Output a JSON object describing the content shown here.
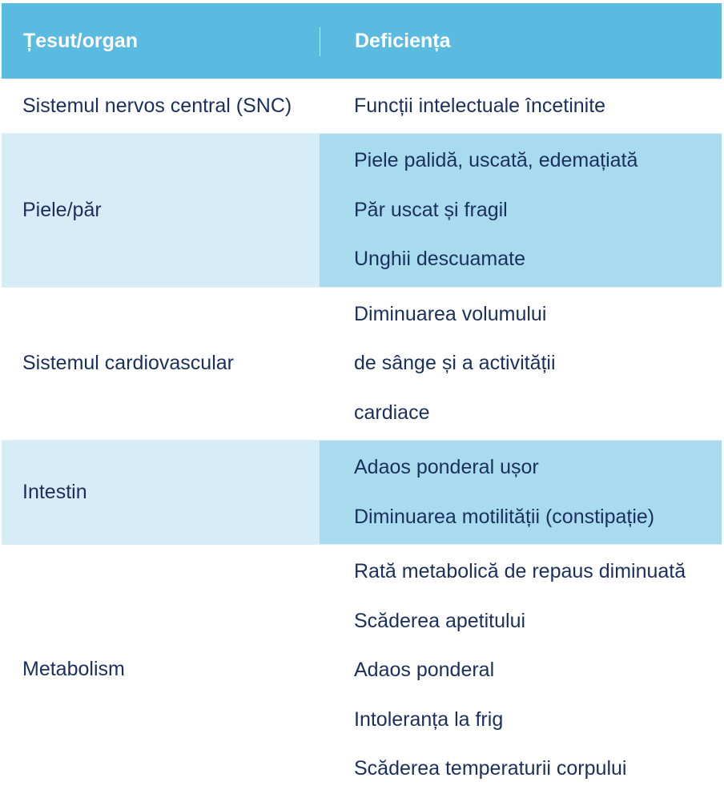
{
  "table": {
    "header": {
      "col1": "Țesut/organ",
      "col2": "Deficiența"
    },
    "rows": [
      {
        "organ": "Sistemul nervos central (SNC)",
        "effects": [
          "Funcții intelectuale încetinite"
        ]
      },
      {
        "organ": "Piele/păr",
        "effects": [
          "Piele palidă, uscată, edemațiată",
          "Păr uscat și fragil",
          "Unghii descuamate"
        ]
      },
      {
        "organ": "Sistemul cardiovascular",
        "effects": [
          "Diminuarea volumului",
          "de sânge și a activității",
          "cardiace"
        ]
      },
      {
        "organ": "Intestin",
        "effects": [
          "Adaos ponderal ușor",
          "Diminuarea motilității (constipație)"
        ]
      },
      {
        "organ": "Metabolism",
        "effects": [
          "Rată metabolică de repaus diminuată",
          "Scăderea apetitului",
          "Adaos ponderal",
          "Intoleranța la frig",
          "Scăderea temperaturii corpului"
        ]
      }
    ]
  },
  "colors": {
    "header_bg": "#5bbadf",
    "alt_left_bg": "#d6ecf6",
    "alt_right_bg": "#a9dbee",
    "text": "#1b2f5c"
  }
}
